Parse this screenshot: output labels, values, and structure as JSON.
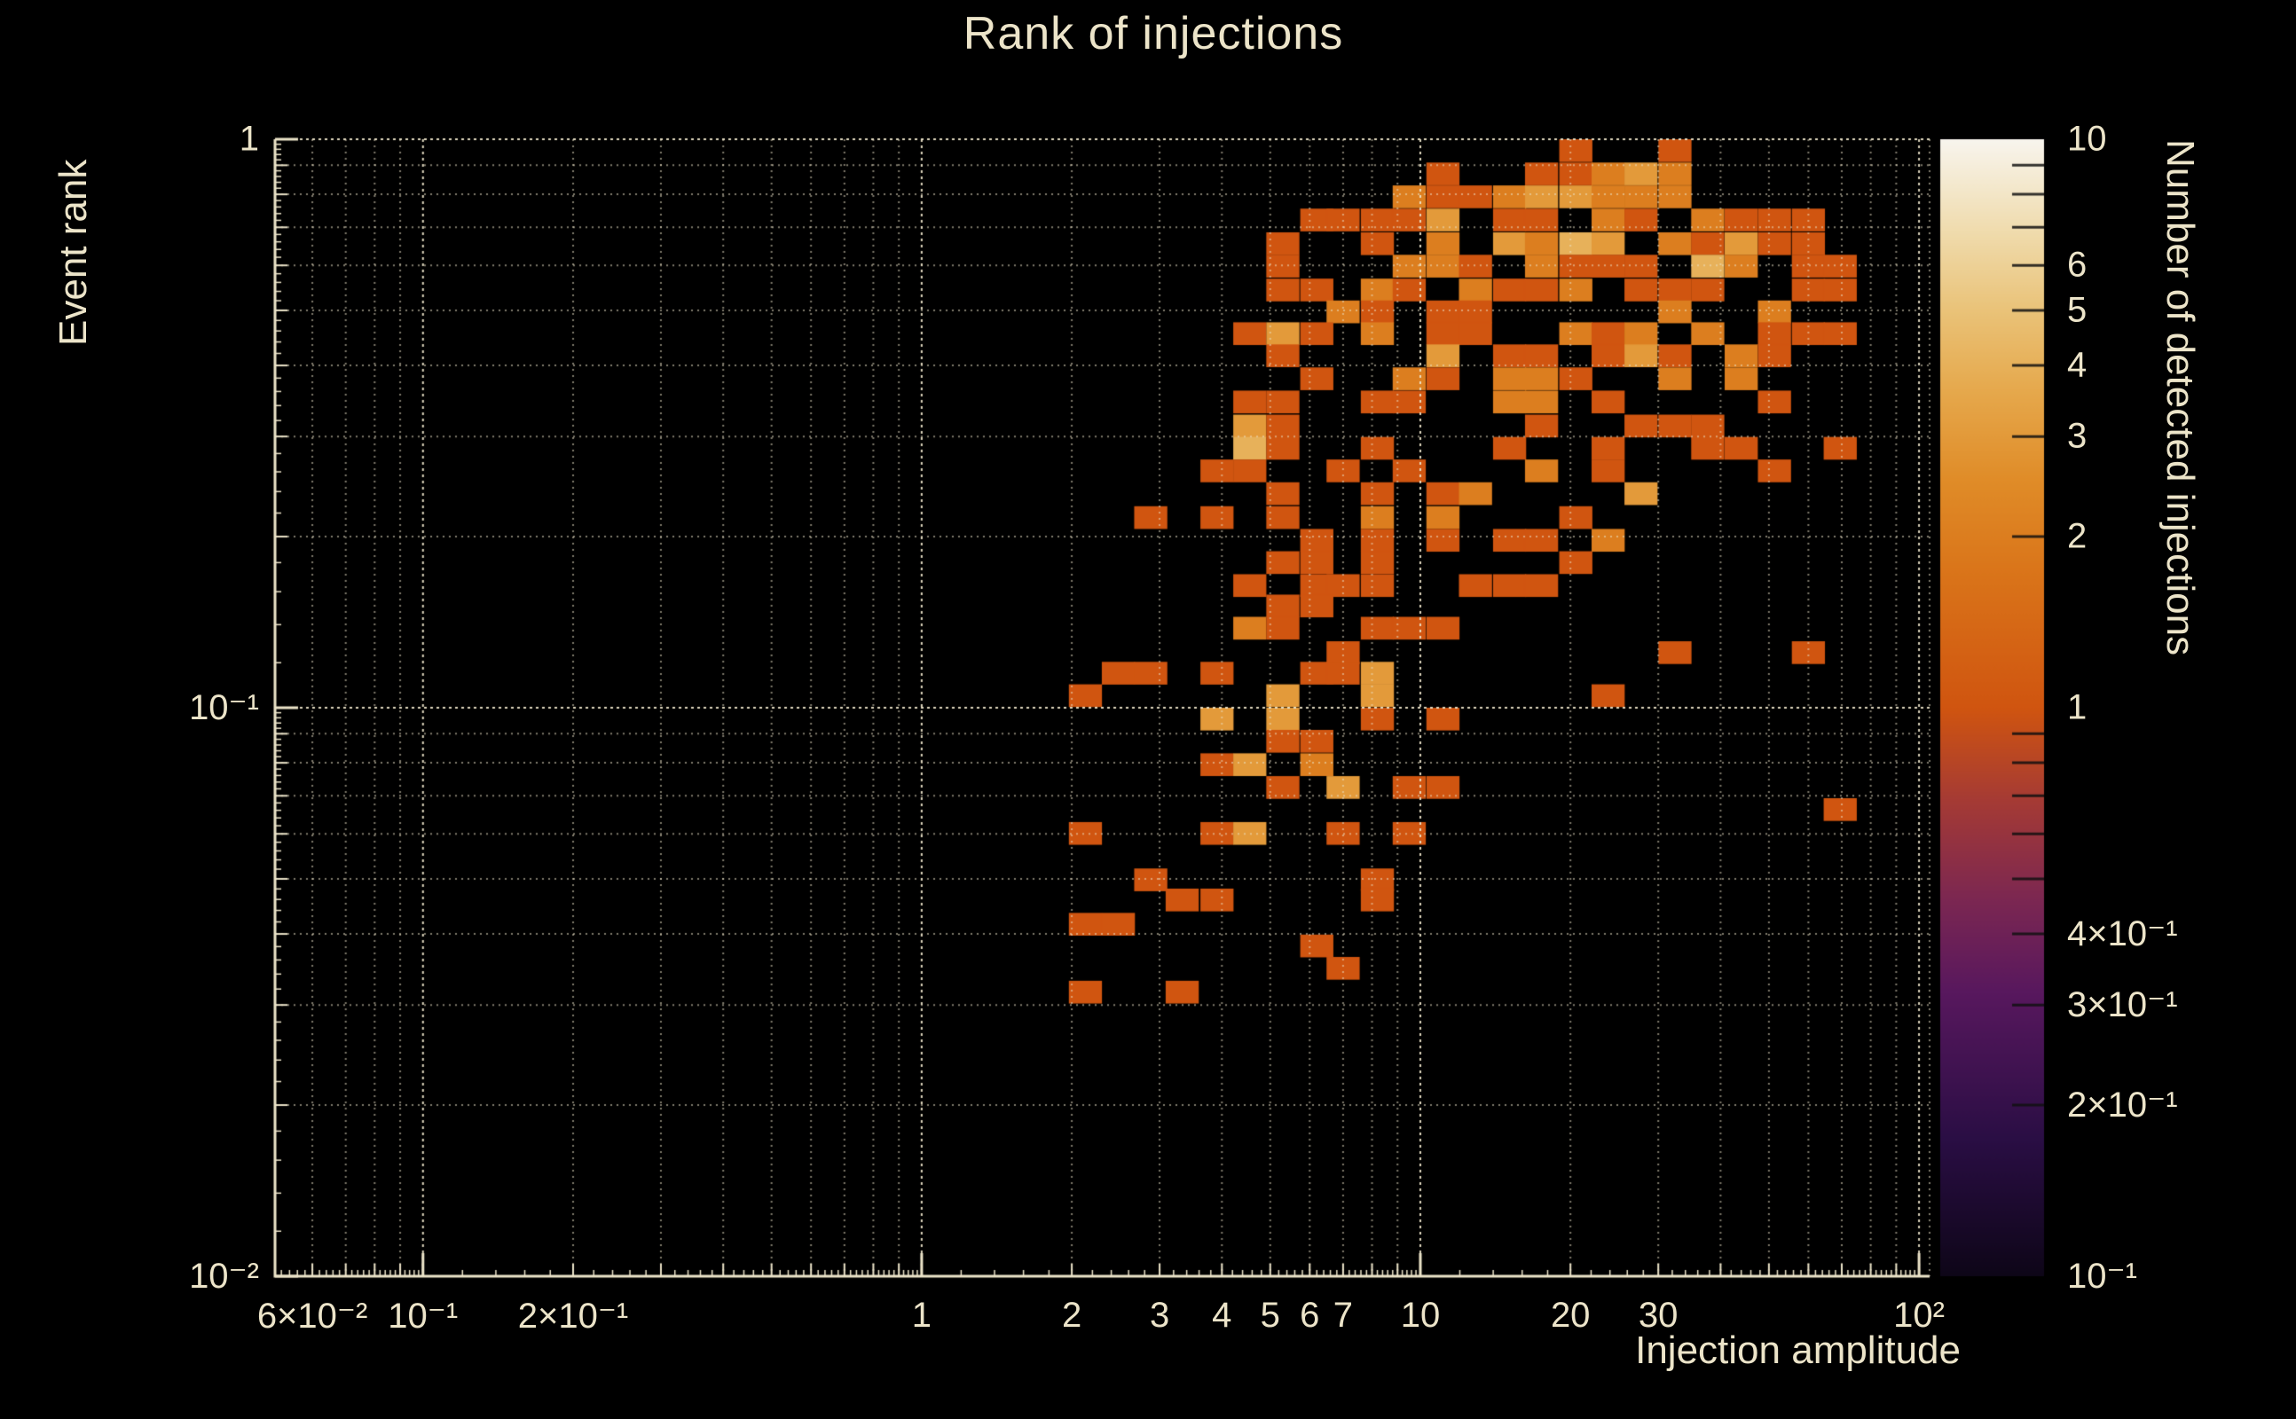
{
  "page": {
    "background": "#000000",
    "text_color": "#ece4c9"
  },
  "title": "Rank of injections",
  "chart_data": {
    "type": "heatmap",
    "title": "Rank of injections",
    "xlabel": "Injection amplitude",
    "ylabel": "Event rank",
    "colorbar_label": "Number of detected injections",
    "x_scale": "log",
    "y_scale": "log",
    "color_scale": "log",
    "xlim": [
      0.0505,
      105
    ],
    "ylim": [
      0.01,
      1
    ],
    "clim": [
      0.1,
      10
    ],
    "grid": true,
    "legend_position": "right-colorbar",
    "bin_width_dex_x": 0.0664,
    "bin_width_dex_y": 0.04,
    "x_ticks": [
      {
        "v": 0.06,
        "t": "6×10⁻²"
      },
      {
        "v": 0.1,
        "t": "10⁻¹"
      },
      {
        "v": 0.2,
        "t": "2×10⁻¹"
      },
      {
        "v": 1,
        "t": "1"
      },
      {
        "v": 2,
        "t": "2"
      },
      {
        "v": 3,
        "t": "3"
      },
      {
        "v": 4,
        "t": "4"
      },
      {
        "v": 5,
        "t": "5"
      },
      {
        "v": 6,
        "t": "6"
      },
      {
        "v": 7,
        "t": "7"
      },
      {
        "v": 10,
        "t": "10"
      },
      {
        "v": 20,
        "t": "20"
      },
      {
        "v": 30,
        "t": "30"
      },
      {
        "v": 100,
        "t": "10²"
      }
    ],
    "y_ticks": [
      {
        "v": 1,
        "t": "1"
      },
      {
        "v": 0.1,
        "t": "10⁻¹"
      },
      {
        "v": 0.01,
        "t": "10⁻²"
      }
    ],
    "colorbar_ticks": [
      {
        "v": 10,
        "t": "10"
      },
      {
        "v": 6,
        "t": "6"
      },
      {
        "v": 5,
        "t": "5"
      },
      {
        "v": 4,
        "t": "4"
      },
      {
        "v": 3,
        "t": "3"
      },
      {
        "v": 2,
        "t": "2"
      },
      {
        "v": 1,
        "t": "1"
      },
      {
        "v": 0.4,
        "t": "4×10⁻¹"
      },
      {
        "v": 0.3,
        "t": "3×10⁻¹"
      },
      {
        "v": 0.2,
        "t": "2×10⁻¹"
      },
      {
        "v": 0.1,
        "t": "10⁻¹"
      }
    ],
    "colormap_stops": [
      [
        0.0,
        "#0e0618"
      ],
      [
        0.12,
        "#2a0e44"
      ],
      [
        0.25,
        "#58185e"
      ],
      [
        0.33,
        "#7b2752"
      ],
      [
        0.42,
        "#a63b34"
      ],
      [
        0.5,
        "#d05510"
      ],
      [
        0.62,
        "#da751a"
      ],
      [
        0.7,
        "#e08c28"
      ],
      [
        0.78,
        "#e6a94d"
      ],
      [
        0.85,
        "#eac379"
      ],
      [
        0.92,
        "#f0dcae"
      ],
      [
        1.0,
        "#f8f5ee"
      ]
    ],
    "cells": [
      [
        20.5,
        0.955,
        1
      ],
      [
        32.4,
        0.955,
        1
      ],
      [
        11.1,
        0.869,
        1
      ],
      [
        17.5,
        0.869,
        1
      ],
      [
        20.5,
        0.869,
        1
      ],
      [
        23.8,
        0.869,
        2
      ],
      [
        27.7,
        0.869,
        3
      ],
      [
        32.4,
        0.869,
        2
      ],
      [
        9.5,
        0.792,
        2
      ],
      [
        11.1,
        0.792,
        1
      ],
      [
        12.9,
        0.792,
        1
      ],
      [
        15.1,
        0.792,
        2
      ],
      [
        17.5,
        0.792,
        3
      ],
      [
        20.5,
        0.792,
        3
      ],
      [
        23.8,
        0.792,
        2
      ],
      [
        27.7,
        0.792,
        2
      ],
      [
        32.4,
        0.792,
        2
      ],
      [
        6.2,
        0.721,
        1
      ],
      [
        7,
        0.721,
        1
      ],
      [
        8.2,
        0.721,
        1
      ],
      [
        9.5,
        0.721,
        1
      ],
      [
        11.1,
        0.721,
        3
      ],
      [
        15.1,
        0.721,
        1
      ],
      [
        17.5,
        0.721,
        1
      ],
      [
        23.8,
        0.721,
        2
      ],
      [
        27.7,
        0.721,
        1
      ],
      [
        37.7,
        0.721,
        2
      ],
      [
        44,
        0.721,
        1
      ],
      [
        51.3,
        0.721,
        1
      ],
      [
        60,
        0.721,
        1
      ],
      [
        5.3,
        0.655,
        1
      ],
      [
        8.2,
        0.655,
        1
      ],
      [
        11.1,
        0.655,
        2
      ],
      [
        15.1,
        0.655,
        3
      ],
      [
        17.5,
        0.655,
        2
      ],
      [
        20.5,
        0.655,
        4
      ],
      [
        23.8,
        0.655,
        3
      ],
      [
        32.4,
        0.655,
        2
      ],
      [
        37.7,
        0.655,
        1
      ],
      [
        44,
        0.655,
        3
      ],
      [
        51.3,
        0.655,
        1
      ],
      [
        60,
        0.655,
        1
      ],
      [
        5.3,
        0.598,
        1
      ],
      [
        9.5,
        0.598,
        2
      ],
      [
        11.1,
        0.598,
        2
      ],
      [
        12.9,
        0.598,
        1
      ],
      [
        17.5,
        0.598,
        2
      ],
      [
        20.5,
        0.598,
        1
      ],
      [
        23.8,
        0.598,
        1
      ],
      [
        27.7,
        0.598,
        1
      ],
      [
        37.7,
        0.598,
        4
      ],
      [
        44,
        0.598,
        2
      ],
      [
        60,
        0.598,
        1
      ],
      [
        69.5,
        0.598,
        1
      ],
      [
        5.3,
        0.543,
        1
      ],
      [
        6.2,
        0.543,
        1
      ],
      [
        8.2,
        0.543,
        2
      ],
      [
        9.5,
        0.543,
        1
      ],
      [
        12.9,
        0.543,
        2
      ],
      [
        15.1,
        0.543,
        1
      ],
      [
        17.5,
        0.543,
        1
      ],
      [
        20.5,
        0.543,
        2
      ],
      [
        27.7,
        0.543,
        1
      ],
      [
        32.4,
        0.543,
        1
      ],
      [
        37.7,
        0.543,
        1
      ],
      [
        60,
        0.543,
        1
      ],
      [
        69.5,
        0.543,
        1
      ],
      [
        7,
        0.497,
        2
      ],
      [
        8.2,
        0.497,
        1
      ],
      [
        11.1,
        0.497,
        1
      ],
      [
        12.9,
        0.497,
        1
      ],
      [
        32.4,
        0.497,
        2
      ],
      [
        51.3,
        0.497,
        2
      ],
      [
        4.55,
        0.455,
        1
      ],
      [
        5.3,
        0.455,
        3
      ],
      [
        6.2,
        0.455,
        1
      ],
      [
        8.2,
        0.455,
        2
      ],
      [
        11.1,
        0.455,
        1
      ],
      [
        12.9,
        0.455,
        1
      ],
      [
        20.5,
        0.455,
        2
      ],
      [
        23.8,
        0.455,
        1
      ],
      [
        27.7,
        0.455,
        2
      ],
      [
        37.7,
        0.455,
        2
      ],
      [
        51.3,
        0.455,
        1
      ],
      [
        60,
        0.455,
        1
      ],
      [
        69.5,
        0.455,
        1
      ],
      [
        5.3,
        0.416,
        1
      ],
      [
        11.1,
        0.416,
        3
      ],
      [
        15.1,
        0.416,
        1
      ],
      [
        17.5,
        0.416,
        1
      ],
      [
        23.8,
        0.416,
        1
      ],
      [
        27.7,
        0.416,
        3
      ],
      [
        32.4,
        0.416,
        1
      ],
      [
        44,
        0.416,
        2
      ],
      [
        51.3,
        0.416,
        1
      ],
      [
        6.2,
        0.379,
        1
      ],
      [
        9.5,
        0.379,
        2
      ],
      [
        11.1,
        0.379,
        1
      ],
      [
        15.1,
        0.379,
        2
      ],
      [
        17.5,
        0.379,
        2
      ],
      [
        20.5,
        0.379,
        1
      ],
      [
        32.4,
        0.379,
        2
      ],
      [
        44,
        0.379,
        2
      ],
      [
        4.55,
        0.345,
        1
      ],
      [
        5.3,
        0.345,
        1
      ],
      [
        8.2,
        0.345,
        1
      ],
      [
        9.5,
        0.345,
        1
      ],
      [
        15.1,
        0.345,
        2
      ],
      [
        17.5,
        0.345,
        2
      ],
      [
        23.8,
        0.345,
        1
      ],
      [
        51.3,
        0.345,
        1
      ],
      [
        4.55,
        0.313,
        3
      ],
      [
        5.3,
        0.313,
        1
      ],
      [
        17.5,
        0.313,
        1
      ],
      [
        27.7,
        0.313,
        1
      ],
      [
        32.4,
        0.313,
        1
      ],
      [
        37.7,
        0.313,
        1
      ],
      [
        4.55,
        0.286,
        4
      ],
      [
        5.3,
        0.286,
        1
      ],
      [
        8.2,
        0.286,
        1
      ],
      [
        15.1,
        0.286,
        1
      ],
      [
        23.8,
        0.286,
        1
      ],
      [
        37.7,
        0.286,
        1
      ],
      [
        44,
        0.286,
        1
      ],
      [
        69.5,
        0.286,
        1
      ],
      [
        3.91,
        0.261,
        1
      ],
      [
        4.55,
        0.261,
        1
      ],
      [
        7,
        0.261,
        1
      ],
      [
        9.5,
        0.261,
        1
      ],
      [
        17.5,
        0.261,
        2
      ],
      [
        23.8,
        0.261,
        1
      ],
      [
        51.3,
        0.261,
        1
      ],
      [
        5.3,
        0.238,
        1
      ],
      [
        8.2,
        0.238,
        1
      ],
      [
        11.1,
        0.238,
        1
      ],
      [
        12.9,
        0.238,
        2
      ],
      [
        27.7,
        0.238,
        3
      ],
      [
        2.88,
        0.216,
        1
      ],
      [
        3.91,
        0.216,
        1
      ],
      [
        5.3,
        0.216,
        1
      ],
      [
        8.2,
        0.216,
        2
      ],
      [
        11.1,
        0.216,
        2
      ],
      [
        20.5,
        0.216,
        1
      ],
      [
        6.2,
        0.197,
        1
      ],
      [
        8.2,
        0.197,
        1
      ],
      [
        11.1,
        0.197,
        1
      ],
      [
        15.1,
        0.197,
        1
      ],
      [
        17.5,
        0.197,
        1
      ],
      [
        23.8,
        0.197,
        2
      ],
      [
        5.3,
        0.18,
        1
      ],
      [
        6.2,
        0.18,
        1
      ],
      [
        8.2,
        0.18,
        1
      ],
      [
        20.5,
        0.18,
        1
      ],
      [
        4.55,
        0.164,
        1
      ],
      [
        6.2,
        0.164,
        1
      ],
      [
        7,
        0.164,
        1
      ],
      [
        8.2,
        0.164,
        1
      ],
      [
        12.9,
        0.164,
        1
      ],
      [
        15.1,
        0.164,
        1
      ],
      [
        17.5,
        0.164,
        1
      ],
      [
        5.3,
        0.151,
        1
      ],
      [
        6.2,
        0.151,
        1
      ],
      [
        4.55,
        0.138,
        2
      ],
      [
        5.3,
        0.138,
        1
      ],
      [
        8.2,
        0.138,
        1
      ],
      [
        9.5,
        0.138,
        1
      ],
      [
        11.1,
        0.138,
        1
      ],
      [
        7,
        0.125,
        1
      ],
      [
        32.4,
        0.125,
        1
      ],
      [
        60,
        0.125,
        1
      ],
      [
        2.48,
        0.115,
        1
      ],
      [
        2.88,
        0.115,
        1
      ],
      [
        3.91,
        0.115,
        1
      ],
      [
        6.2,
        0.115,
        1
      ],
      [
        7,
        0.115,
        1
      ],
      [
        8.2,
        0.115,
        3
      ],
      [
        2.13,
        0.105,
        1
      ],
      [
        5.3,
        0.105,
        3
      ],
      [
        8.2,
        0.105,
        3
      ],
      [
        23.8,
        0.105,
        1
      ],
      [
        3.91,
        0.0955,
        3
      ],
      [
        5.3,
        0.0955,
        3
      ],
      [
        8.2,
        0.0955,
        1
      ],
      [
        11.1,
        0.0955,
        1
      ],
      [
        5.3,
        0.0873,
        1
      ],
      [
        6.2,
        0.0873,
        1
      ],
      [
        3.91,
        0.0794,
        1
      ],
      [
        4.55,
        0.0794,
        3
      ],
      [
        6.2,
        0.0794,
        2
      ],
      [
        5.3,
        0.0724,
        1
      ],
      [
        7,
        0.0724,
        3
      ],
      [
        9.5,
        0.0724,
        1
      ],
      [
        11.1,
        0.0724,
        1
      ],
      [
        69.5,
        0.0662,
        1
      ],
      [
        2.13,
        0.0601,
        1
      ],
      [
        3.91,
        0.0601,
        1
      ],
      [
        4.55,
        0.0601,
        3
      ],
      [
        7,
        0.0601,
        1
      ],
      [
        9.5,
        0.0601,
        1
      ],
      [
        2.88,
        0.0498,
        1
      ],
      [
        8.2,
        0.0498,
        1
      ],
      [
        3.33,
        0.0459,
        1
      ],
      [
        3.91,
        0.0459,
        1
      ],
      [
        8.2,
        0.0459,
        1
      ],
      [
        2.13,
        0.0416,
        1
      ],
      [
        2.48,
        0.0416,
        1
      ],
      [
        6.2,
        0.0381,
        1
      ],
      [
        7,
        0.0348,
        1
      ],
      [
        2.13,
        0.0316,
        1
      ],
      [
        3.33,
        0.0316,
        1
      ]
    ]
  }
}
